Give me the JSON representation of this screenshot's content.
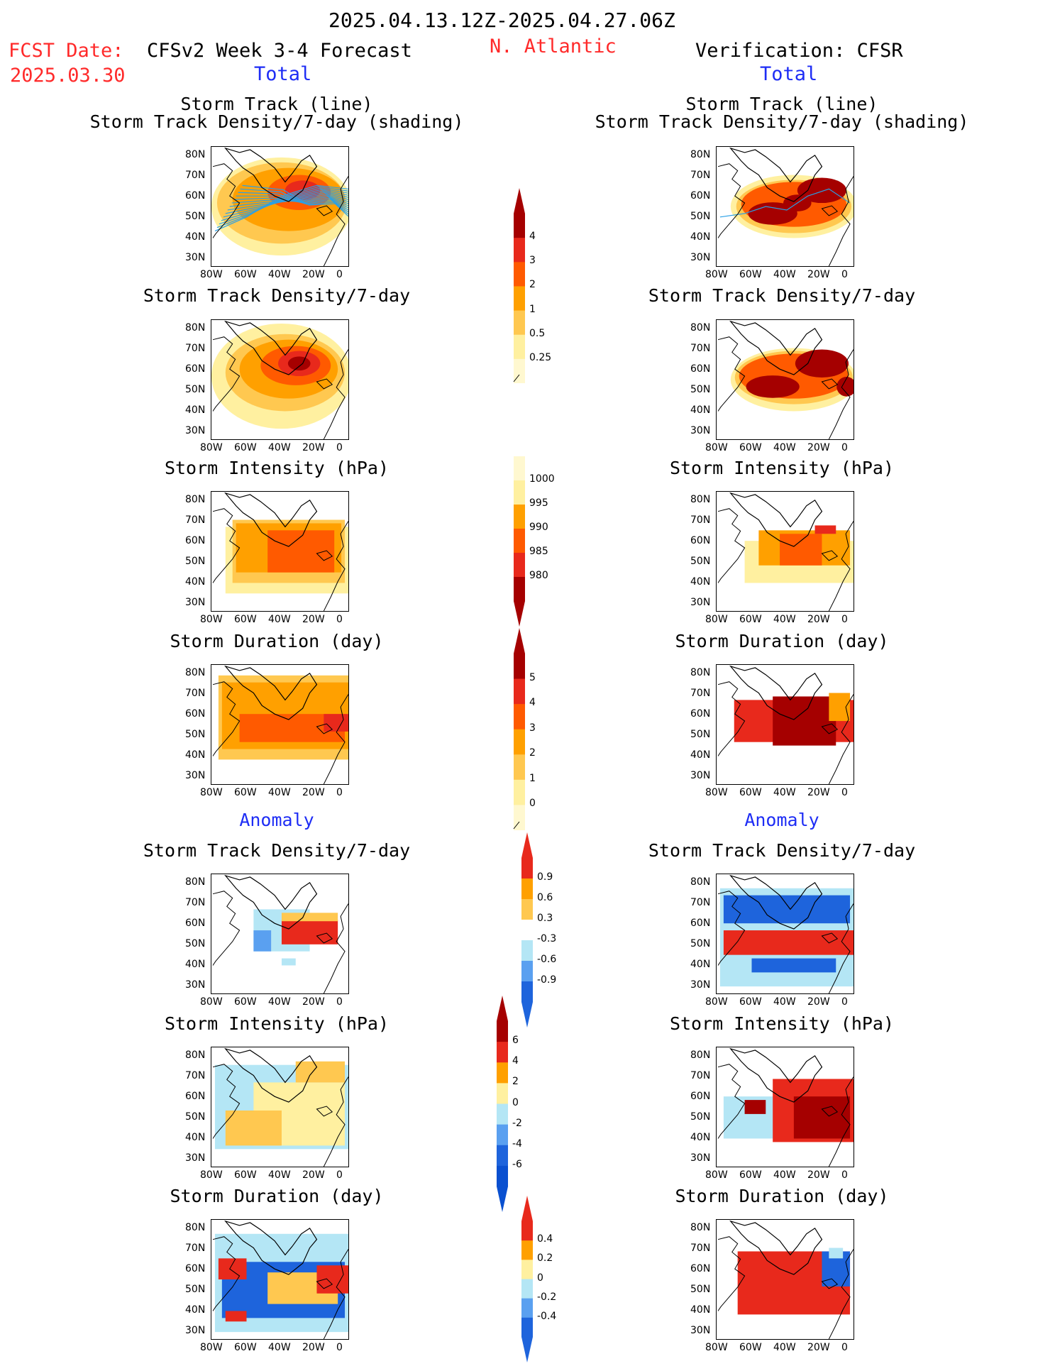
{
  "header": {
    "date_range": "2025.04.13.12Z-2025.04.27.06Z",
    "fcst_label": "FCST Date:",
    "fcst_date": "2025.03.30",
    "left_title": "CFSv2 Week 3-4 Forecast",
    "region": "N. Atlantic",
    "right_title": "Verification: CFSR",
    "left_sub": "Total",
    "right_sub": "Total"
  },
  "sections": {
    "total": "Total",
    "anomaly_left": "Anomaly",
    "anomaly_right": "Anomaly"
  },
  "panel_titles": {
    "track_line": "Storm Track (line)",
    "track_shading": "Storm Track Density/7-day (shading)",
    "density": "Storm Track Density/7-day",
    "intensity": "Storm Intensity (hPa)",
    "duration": "Storm Duration (day)"
  },
  "axes": {
    "lat_ticks": [
      "80N",
      "70N",
      "60N",
      "50N",
      "40N",
      "30N"
    ],
    "lon_ticks": [
      "80W",
      "60W",
      "40W",
      "20W",
      "0"
    ]
  },
  "colorbars": {
    "density_total": [
      "4",
      "3",
      "2",
      "1",
      "0.5",
      "0.25"
    ],
    "intensity_total": [
      "1000",
      "995",
      "990",
      "985",
      "980"
    ],
    "duration_total": [
      "5",
      "4",
      "3",
      "2",
      "1",
      "0"
    ],
    "density_anom": [
      "0.9",
      "0.6",
      "0.3",
      "-0.3",
      "-0.6",
      "-0.9"
    ],
    "intensity_anom": [
      "6",
      "4",
      "2",
      "0",
      "-2",
      "-4",
      "-6"
    ],
    "duration_anom": [
      "0.4",
      "0.2",
      "0",
      "-0.2",
      "-0.4"
    ]
  },
  "colors": {
    "dark_red": "#a50000",
    "red": "#e8291c",
    "orange_red": "#ff5a00",
    "orange": "#ffa000",
    "light_orange": "#ffc850",
    "pale_yellow": "#fff0a0",
    "light_blue": "#b4e6f5",
    "mid_blue": "#5aa0f0",
    "blue": "#1e64dc",
    "track_blue": "#2aa0e6"
  }
}
